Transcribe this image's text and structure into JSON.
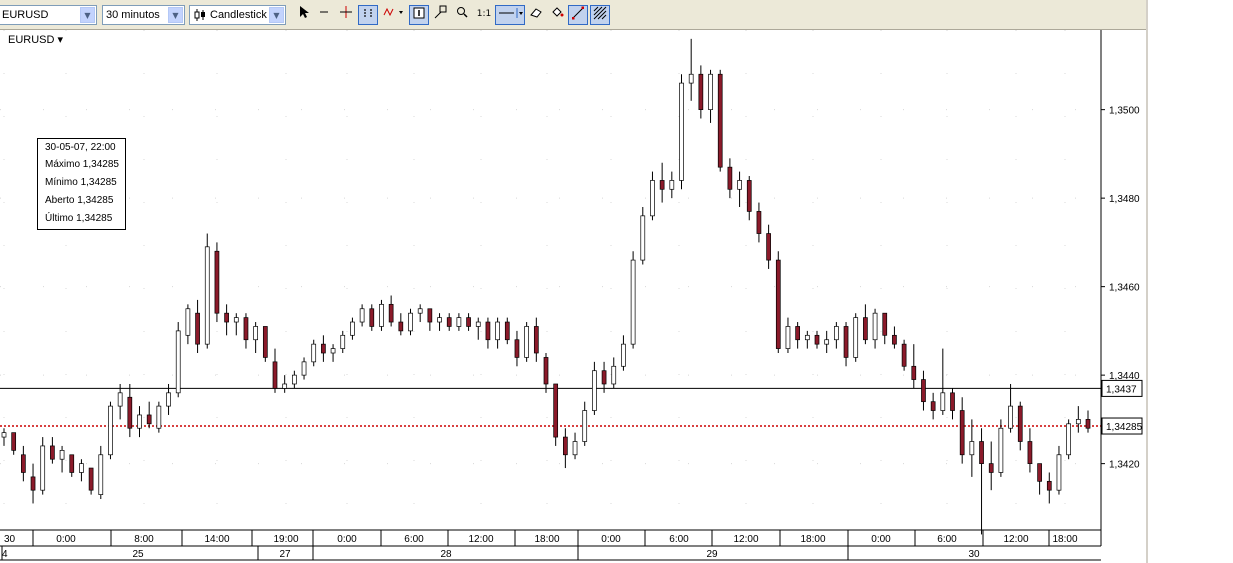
{
  "toolbar": {
    "symbol_value": "EURUSD",
    "interval_value": "30 minutos",
    "chart_type_value": "Candlestick"
  },
  "chart": {
    "symbol_label": "EURUSD ▾",
    "tooltip": {
      "date": "30-05-07, 22:00",
      "rows": [
        {
          "label": "Máximo",
          "value": "1,34285"
        },
        {
          "label": "Mínimo",
          "value": "1,34285"
        },
        {
          "label": "Aberto",
          "value": "1,34285"
        },
        {
          "label": "Último",
          "value": "1,34285"
        }
      ]
    },
    "price_marker_black": "1,3437",
    "price_marker_red": "1,34285"
  },
  "chart_data": {
    "type": "candlestick",
    "symbol": "EURUSD",
    "interval": "30 minutos",
    "y_ticks": [
      "1,3420",
      "1,3440",
      "1,3460",
      "1,3480",
      "1,3500"
    ],
    "ylim": [
      1.3405,
      1.3518
    ],
    "time_ticks": [
      "30",
      "0:00",
      "8:00",
      "14:00",
      "19:00",
      "0:00",
      "6:00",
      "12:00",
      "18:00",
      "0:00",
      "6:00",
      "12:00",
      "18:00",
      "0:00",
      "6:00",
      "12:00",
      "18:00"
    ],
    "date_ticks": [
      "4",
      "25",
      "27",
      "28",
      "29",
      "30"
    ],
    "horizontal_lines": [
      {
        "value": 1.3437,
        "label": "1,3437",
        "style": "solid",
        "color": "#000000"
      },
      {
        "value": 1.34285,
        "label": "1,34285",
        "style": "dotted",
        "color": "#cc0000"
      }
    ],
    "candle_colors": {
      "up": "#ffffff",
      "down": "#8b1a2a"
    },
    "candles": [
      [
        1.3426,
        1.3428,
        1.3424,
        1.3427
      ],
      [
        1.3427,
        1.3427,
        1.3422,
        1.3423
      ],
      [
        1.3422,
        1.3424,
        1.3416,
        1.3418
      ],
      [
        1.3417,
        1.342,
        1.3411,
        1.3414
      ],
      [
        1.3414,
        1.3426,
        1.3413,
        1.3424
      ],
      [
        1.3424,
        1.3426,
        1.342,
        1.3421
      ],
      [
        1.3421,
        1.3424,
        1.3418,
        1.3423
      ],
      [
        1.3422,
        1.3422,
        1.3417,
        1.3418
      ],
      [
        1.3418,
        1.3421,
        1.3416,
        1.342
      ],
      [
        1.3419,
        1.3419,
        1.3413,
        1.3414
      ],
      [
        1.3413,
        1.3424,
        1.3412,
        1.3422
      ],
      [
        1.3422,
        1.3434,
        1.3421,
        1.3433
      ],
      [
        1.3433,
        1.3438,
        1.343,
        1.3436
      ],
      [
        1.3435,
        1.3438,
        1.3426,
        1.3428
      ],
      [
        1.3428,
        1.3433,
        1.3426,
        1.3431
      ],
      [
        1.3431,
        1.3434,
        1.3428,
        1.3429
      ],
      [
        1.3428,
        1.3434,
        1.3427,
        1.3433
      ],
      [
        1.3433,
        1.3438,
        1.3431,
        1.3436
      ],
      [
        1.3436,
        1.3452,
        1.3435,
        1.345
      ],
      [
        1.3449,
        1.3456,
        1.3447,
        1.3455
      ],
      [
        1.3454,
        1.3457,
        1.3445,
        1.3447
      ],
      [
        1.3447,
        1.3472,
        1.3446,
        1.3469
      ],
      [
        1.3468,
        1.347,
        1.3452,
        1.3454
      ],
      [
        1.3454,
        1.3456,
        1.3449,
        1.3452
      ],
      [
        1.3452,
        1.3454,
        1.3449,
        1.3453
      ],
      [
        1.3453,
        1.3454,
        1.3446,
        1.3448
      ],
      [
        1.3448,
        1.3452,
        1.3445,
        1.3451
      ],
      [
        1.3451,
        1.3451,
        1.3443,
        1.3444
      ],
      [
        1.3443,
        1.3446,
        1.3436,
        1.3437
      ],
      [
        1.3437,
        1.344,
        1.3436,
        1.3438
      ],
      [
        1.3438,
        1.3441,
        1.3437,
        1.344
      ],
      [
        1.344,
        1.3444,
        1.3439,
        1.3443
      ],
      [
        1.3443,
        1.3448,
        1.3442,
        1.3447
      ],
      [
        1.3447,
        1.3449,
        1.3443,
        1.3445
      ],
      [
        1.3445,
        1.3447,
        1.3443,
        1.3446
      ],
      [
        1.3446,
        1.345,
        1.3445,
        1.3449
      ],
      [
        1.3449,
        1.3453,
        1.3448,
        1.3452
      ],
      [
        1.3452,
        1.3456,
        1.3451,
        1.3455
      ],
      [
        1.3455,
        1.3456,
        1.345,
        1.3451
      ],
      [
        1.3451,
        1.3457,
        1.345,
        1.3456
      ],
      [
        1.3456,
        1.3458,
        1.3451,
        1.3452
      ],
      [
        1.3452,
        1.3454,
        1.3449,
        1.345
      ],
      [
        1.345,
        1.3455,
        1.3449,
        1.3454
      ],
      [
        1.3454,
        1.3456,
        1.3452,
        1.3455
      ],
      [
        1.3455,
        1.3455,
        1.345,
        1.3452
      ],
      [
        1.3452,
        1.3454,
        1.345,
        1.3453
      ],
      [
        1.3453,
        1.3454,
        1.345,
        1.3451
      ],
      [
        1.3451,
        1.3454,
        1.345,
        1.3453
      ],
      [
        1.3453,
        1.3454,
        1.345,
        1.3451
      ],
      [
        1.3451,
        1.3453,
        1.3448,
        1.3452
      ],
      [
        1.3452,
        1.3453,
        1.3446,
        1.3448
      ],
      [
        1.3448,
        1.3453,
        1.3446,
        1.3452
      ],
      [
        1.3452,
        1.3453,
        1.3447,
        1.3448
      ],
      [
        1.3448,
        1.345,
        1.3442,
        1.3444
      ],
      [
        1.3444,
        1.3452,
        1.3443,
        1.3451
      ],
      [
        1.3451,
        1.3453,
        1.3443,
        1.3445
      ],
      [
        1.3444,
        1.3445,
        1.3436,
        1.3438
      ],
      [
        1.3438,
        1.3438,
        1.3424,
        1.3426
      ],
      [
        1.3426,
        1.3428,
        1.3419,
        1.3422
      ],
      [
        1.3422,
        1.3427,
        1.3421,
        1.3425
      ],
      [
        1.3425,
        1.3434,
        1.3424,
        1.3432
      ],
      [
        1.3432,
        1.3443,
        1.3431,
        1.3441
      ],
      [
        1.3441,
        1.3443,
        1.3436,
        1.3438
      ],
      [
        1.3438,
        1.3444,
        1.3437,
        1.3442
      ],
      [
        1.3442,
        1.3449,
        1.3441,
        1.3447
      ],
      [
        1.3447,
        1.3468,
        1.3446,
        1.3466
      ],
      [
        1.3466,
        1.3478,
        1.3465,
        1.3476
      ],
      [
        1.3476,
        1.3486,
        1.3475,
        1.3484
      ],
      [
        1.3484,
        1.3488,
        1.3479,
        1.3482
      ],
      [
        1.3482,
        1.3486,
        1.348,
        1.3484
      ],
      [
        1.3484,
        1.3508,
        1.3482,
        1.3506
      ],
      [
        1.3506,
        1.3516,
        1.3502,
        1.3508
      ],
      [
        1.3508,
        1.351,
        1.3498,
        1.35
      ],
      [
        1.35,
        1.3509,
        1.3497,
        1.3508
      ],
      [
        1.3508,
        1.3509,
        1.3486,
        1.3487
      ],
      [
        1.3487,
        1.3489,
        1.348,
        1.3482
      ],
      [
        1.3482,
        1.3486,
        1.3478,
        1.3484
      ],
      [
        1.3484,
        1.3485,
        1.3475,
        1.3477
      ],
      [
        1.3477,
        1.3479,
        1.347,
        1.3472
      ],
      [
        1.3472,
        1.3474,
        1.3464,
        1.3466
      ],
      [
        1.3466,
        1.3468,
        1.3445,
        1.3446
      ],
      [
        1.3446,
        1.3453,
        1.3445,
        1.3451
      ],
      [
        1.3451,
        1.3452,
        1.3446,
        1.3448
      ],
      [
        1.3448,
        1.345,
        1.3446,
        1.3449
      ],
      [
        1.3449,
        1.345,
        1.3446,
        1.3447
      ],
      [
        1.3447,
        1.345,
        1.3445,
        1.3448
      ],
      [
        1.3448,
        1.3452,
        1.3446,
        1.3451
      ],
      [
        1.3451,
        1.3452,
        1.3442,
        1.3444
      ],
      [
        1.3444,
        1.3454,
        1.3443,
        1.3453
      ],
      [
        1.3453,
        1.3456,
        1.3447,
        1.3448
      ],
      [
        1.3448,
        1.3455,
        1.3446,
        1.3454
      ],
      [
        1.3454,
        1.3454,
        1.3447,
        1.3449
      ],
      [
        1.3449,
        1.3451,
        1.3446,
        1.3447
      ],
      [
        1.3447,
        1.3448,
        1.3441,
        1.3442
      ],
      [
        1.3442,
        1.3447,
        1.3437,
        1.3439
      ],
      [
        1.3439,
        1.3441,
        1.3432,
        1.3434
      ],
      [
        1.3434,
        1.3436,
        1.343,
        1.3432
      ],
      [
        1.3432,
        1.3446,
        1.3431,
        1.3436
      ],
      [
        1.3436,
        1.3437,
        1.343,
        1.3432
      ],
      [
        1.3432,
        1.3435,
        1.342,
        1.3422
      ],
      [
        1.3422,
        1.343,
        1.3417,
        1.3425
      ],
      [
        1.3425,
        1.3428,
        1.3404,
        1.342
      ],
      [
        1.342,
        1.3425,
        1.3414,
        1.3418
      ],
      [
        1.3418,
        1.343,
        1.3417,
        1.3428
      ],
      [
        1.3428,
        1.3438,
        1.3427,
        1.3433
      ],
      [
        1.3433,
        1.3434,
        1.3423,
        1.3425
      ],
      [
        1.3425,
        1.3428,
        1.3418,
        1.342
      ],
      [
        1.342,
        1.342,
        1.3413,
        1.3416
      ],
      [
        1.3416,
        1.3418,
        1.3411,
        1.3414
      ],
      [
        1.3414,
        1.3424,
        1.3413,
        1.3422
      ],
      [
        1.3422,
        1.343,
        1.3421,
        1.3429
      ],
      [
        1.3429,
        1.3433,
        1.3427,
        1.343
      ],
      [
        1.343,
        1.3432,
        1.3427,
        1.3428
      ]
    ]
  }
}
